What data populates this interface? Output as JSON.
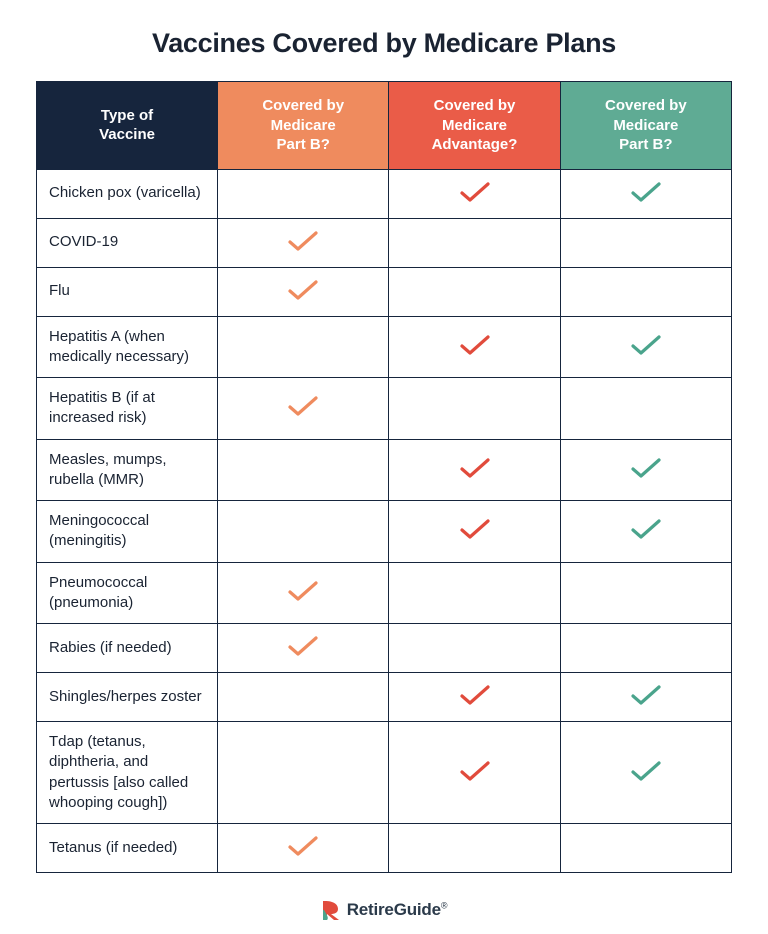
{
  "title": "Vaccines Covered by Medicare Plans",
  "colors": {
    "header_navy": "#16253d",
    "header_orange": "#ef8b5e",
    "header_red": "#ea5c48",
    "header_teal": "#5fab94",
    "check_orange": "#ef8b5e",
    "check_red": "#e14b3c",
    "check_teal": "#4aa48c",
    "border": "#16253d",
    "logo_red": "#e14b3c",
    "logo_teal": "#4aa48c"
  },
  "columns": [
    {
      "label": "Type of\nVaccine",
      "bg_key": "header_navy"
    },
    {
      "label": "Covered by\nMedicare\nPart B?",
      "bg_key": "header_orange"
    },
    {
      "label": "Covered by\nMedicare\nAdvantage?",
      "bg_key": "header_red"
    },
    {
      "label": "Covered by\nMedicare\nPart B?",
      "bg_key": "header_teal"
    }
  ],
  "rows": [
    {
      "label": "Chicken pox (varicella)",
      "checks": [
        false,
        true,
        true
      ]
    },
    {
      "label": "COVID-19",
      "checks": [
        true,
        false,
        false
      ]
    },
    {
      "label": "Flu",
      "checks": [
        true,
        false,
        false
      ]
    },
    {
      "label": "Hepatitis A (when medically necessary)",
      "checks": [
        false,
        true,
        true
      ]
    },
    {
      "label": "Hepatitis B (if at increased risk)",
      "checks": [
        true,
        false,
        false
      ]
    },
    {
      "label": "Measles, mumps, rubella (MMR)",
      "checks": [
        false,
        true,
        true
      ]
    },
    {
      "label": "Meningococcal (meningitis)",
      "checks": [
        false,
        true,
        true
      ]
    },
    {
      "label": "Pneumococcal (pneumonia)",
      "checks": [
        true,
        false,
        false
      ]
    },
    {
      "label": "Rabies (if needed)",
      "checks": [
        true,
        false,
        false
      ]
    },
    {
      "label": "Shingles/herpes zoster",
      "checks": [
        false,
        true,
        true
      ]
    },
    {
      "label": "Tdap (tetanus, diphtheria, and pertussis [also called whooping cough])",
      "checks": [
        false,
        true,
        true
      ]
    },
    {
      "label": "Tetanus (if needed)",
      "checks": [
        true,
        false,
        false
      ]
    }
  ],
  "check_color_by_col": [
    "check_orange",
    "check_red",
    "check_teal"
  ],
  "logo_text": "RetireGuide",
  "logo_mark_sup": "®"
}
